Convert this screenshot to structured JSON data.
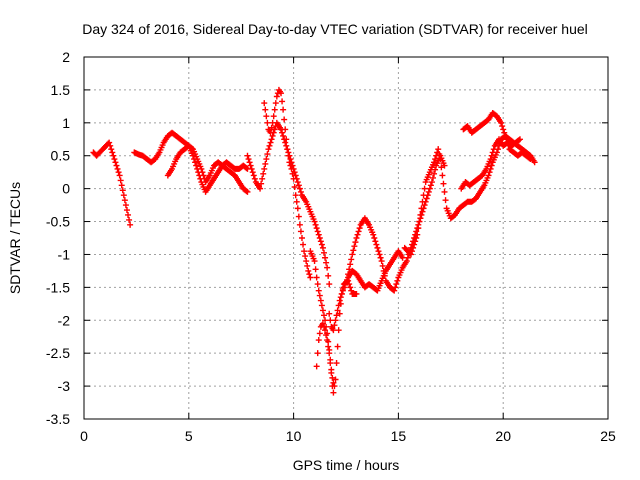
{
  "chart_data": {
    "type": "scatter",
    "title": "Day 324 of 2016, Sidereal Day-to-day VTEC variation (SDTVAR) for receiver huel",
    "xlabel": "GPS time / hours",
    "ylabel": "SDTVAR / TECUs",
    "xlim": [
      0,
      25
    ],
    "ylim": [
      -3.5,
      2
    ],
    "xticks": [
      0,
      5,
      10,
      15,
      20,
      25
    ],
    "xtick_labels": [
      "0",
      "5",
      "10",
      "15",
      "20",
      "25"
    ],
    "yticks": [
      -3.5,
      -3,
      -2.5,
      -2,
      -1.5,
      -1,
      -0.5,
      0,
      0.5,
      1,
      1.5,
      2
    ],
    "ytick_labels": [
      "-3.5",
      "-3",
      "-2.5",
      "-2",
      "-1.5",
      "-1",
      "-0.5",
      "0",
      "0.5",
      "1",
      "1.5",
      "2"
    ],
    "grid": true,
    "marker": "+",
    "color": "#ff0000",
    "series": [
      {
        "name": "SDTVAR",
        "segments": [
          [
            [
              0.45,
              0.55
            ],
            [
              0.6,
              0.5
            ],
            [
              0.75,
              0.55
            ],
            [
              0.9,
              0.6
            ],
            [
              1.05,
              0.65
            ],
            [
              1.2,
              0.7
            ],
            [
              1.3,
              0.6
            ],
            [
              1.4,
              0.5
            ],
            [
              1.5,
              0.4
            ],
            [
              1.6,
              0.3
            ],
            [
              1.7,
              0.2
            ],
            [
              1.8,
              0.05
            ],
            [
              1.9,
              -0.1
            ],
            [
              2.0,
              -0.25
            ],
            [
              2.1,
              -0.4
            ],
            [
              2.2,
              -0.55
            ]
          ],
          [
            [
              2.4,
              0.55
            ],
            [
              2.6,
              0.52
            ],
            [
              2.8,
              0.5
            ],
            [
              3.0,
              0.45
            ],
            [
              3.2,
              0.4
            ],
            [
              3.4,
              0.45
            ],
            [
              3.6,
              0.55
            ],
            [
              3.8,
              0.7
            ],
            [
              4.0,
              0.8
            ],
            [
              4.2,
              0.85
            ],
            [
              4.4,
              0.8
            ],
            [
              4.6,
              0.75
            ],
            [
              4.8,
              0.7
            ],
            [
              5.0,
              0.65
            ],
            [
              5.2,
              0.6
            ],
            [
              5.4,
              0.45
            ],
            [
              5.6,
              0.3
            ],
            [
              5.8,
              0.1
            ],
            [
              6.0,
              0.2
            ],
            [
              6.2,
              0.35
            ],
            [
              6.4,
              0.4
            ],
            [
              6.6,
              0.35
            ],
            [
              6.8,
              0.3
            ],
            [
              7.0,
              0.25
            ],
            [
              7.2,
              0.2
            ],
            [
              7.4,
              0.1
            ],
            [
              7.6,
              0.0
            ],
            [
              7.8,
              -0.05
            ]
          ],
          [
            [
              4.0,
              0.2
            ],
            [
              4.2,
              0.3
            ],
            [
              4.4,
              0.45
            ],
            [
              4.6,
              0.55
            ],
            [
              4.8,
              0.6
            ],
            [
              5.0,
              0.65
            ],
            [
              5.2,
              0.5
            ],
            [
              5.4,
              0.3
            ],
            [
              5.6,
              0.1
            ],
            [
              5.8,
              -0.05
            ],
            [
              6.0,
              0.05
            ],
            [
              6.2,
              0.15
            ],
            [
              6.4,
              0.25
            ],
            [
              6.6,
              0.35
            ],
            [
              6.8,
              0.4
            ],
            [
              7.0,
              0.35
            ],
            [
              7.2,
              0.3
            ],
            [
              7.4,
              0.3
            ],
            [
              7.6,
              0.35
            ],
            [
              7.8,
              0.3
            ]
          ],
          [
            [
              7.8,
              0.5
            ],
            [
              8.0,
              0.3
            ],
            [
              8.2,
              0.1
            ],
            [
              8.4,
              0.0
            ],
            [
              8.6,
              0.3
            ],
            [
              8.8,
              0.6
            ],
            [
              9.0,
              0.8
            ],
            [
              9.2,
              1.0
            ],
            [
              9.4,
              0.9
            ],
            [
              9.6,
              0.7
            ],
            [
              9.8,
              0.5
            ],
            [
              10.0,
              0.3
            ],
            [
              10.2,
              0.1
            ],
            [
              10.4,
              -0.1
            ],
            [
              10.6,
              -0.2
            ],
            [
              10.8,
              -0.35
            ],
            [
              11.0,
              -0.5
            ],
            [
              11.2,
              -0.7
            ],
            [
              11.4,
              -0.9
            ],
            [
              11.6,
              -1.2
            ],
            [
              11.7,
              -1.45
            ]
          ],
          [
            [
              8.6,
              1.3
            ],
            [
              8.7,
              1.1
            ],
            [
              8.8,
              0.9
            ],
            [
              8.9,
              0.85
            ],
            [
              9.0,
              1.0
            ],
            [
              9.1,
              1.2
            ],
            [
              9.2,
              1.4
            ],
            [
              9.3,
              1.5
            ],
            [
              9.4,
              1.45
            ],
            [
              9.5,
              1.2
            ],
            [
              9.6,
              0.9
            ],
            [
              9.7,
              0.6
            ],
            [
              9.8,
              0.4
            ],
            [
              9.9,
              0.3
            ],
            [
              10.0,
              0.15
            ],
            [
              10.1,
              -0.1
            ],
            [
              10.2,
              -0.3
            ],
            [
              10.3,
              -0.55
            ],
            [
              10.4,
              -0.75
            ],
            [
              10.5,
              -0.95
            ],
            [
              10.6,
              -1.1
            ],
            [
              10.7,
              -1.25
            ],
            [
              10.8,
              -1.35
            ]
          ],
          [
            [
              10.8,
              -0.95
            ],
            [
              11.0,
              -1.1
            ],
            [
              11.1,
              -1.35
            ],
            [
              11.2,
              -1.55
            ],
            [
              11.3,
              -1.7
            ],
            [
              11.4,
              -1.85
            ],
            [
              11.5,
              -2.0
            ],
            [
              11.6,
              -2.2
            ],
            [
              11.7,
              -2.45
            ],
            [
              11.8,
              -2.75
            ],
            [
              11.85,
              -3.0
            ],
            [
              11.9,
              -3.1
            ],
            [
              12.0,
              -2.9
            ],
            [
              12.1,
              -2.4
            ],
            [
              12.2,
              -1.9
            ],
            [
              12.3,
              -1.6
            ],
            [
              12.4,
              -1.45
            ],
            [
              12.6,
              -1.4
            ],
            [
              12.8,
              -1.6
            ],
            [
              13.0,
              -1.6
            ]
          ],
          [
            [
              11.1,
              -2.7
            ],
            [
              11.2,
              -2.3
            ],
            [
              11.3,
              -2.1
            ],
            [
              11.4,
              -2.05
            ],
            [
              11.5,
              -2.15
            ],
            [
              11.6,
              -2.3
            ],
            [
              11.7,
              -2.5
            ],
            [
              11.8,
              -2.8
            ],
            [
              11.9,
              -2.95
            ]
          ],
          [
            [
              11.7,
              -1.9
            ],
            [
              11.8,
              -2.1
            ],
            [
              11.9,
              -2.15
            ],
            [
              12.0,
              -2.0
            ],
            [
              12.2,
              -1.7
            ],
            [
              12.4,
              -1.5
            ],
            [
              12.6,
              -1.35
            ],
            [
              12.8,
              -1.25
            ],
            [
              13.0,
              -1.3
            ],
            [
              13.2,
              -1.4
            ],
            [
              13.4,
              -1.5
            ],
            [
              13.6,
              -1.45
            ],
            [
              13.8,
              -1.5
            ],
            [
              14.0,
              -1.55
            ],
            [
              14.2,
              -1.4
            ],
            [
              14.4,
              -1.25
            ],
            [
              14.6,
              -1.15
            ],
            [
              14.8,
              -1.05
            ],
            [
              15.0,
              -0.95
            ],
            [
              15.2,
              -1.05
            ]
          ],
          [
            [
              12.6,
              -1.3
            ],
            [
              12.8,
              -1.0
            ],
            [
              13.0,
              -0.75
            ],
            [
              13.2,
              -0.55
            ],
            [
              13.4,
              -0.45
            ],
            [
              13.6,
              -0.55
            ],
            [
              13.8,
              -0.7
            ],
            [
              14.0,
              -0.9
            ],
            [
              14.2,
              -1.1
            ],
            [
              14.4,
              -1.4
            ],
            [
              14.6,
              -1.5
            ],
            [
              14.8,
              -1.55
            ],
            [
              15.0,
              -1.35
            ],
            [
              15.2,
              -1.2
            ],
            [
              15.4,
              -1.1
            ],
            [
              15.6,
              -0.9
            ],
            [
              15.8,
              -0.7
            ],
            [
              16.0,
              -0.5
            ],
            [
              16.2,
              -0.3
            ],
            [
              16.4,
              -0.1
            ],
            [
              16.6,
              0.1
            ],
            [
              16.8,
              0.35
            ],
            [
              17.0,
              0.5
            ],
            [
              17.2,
              0.35
            ]
          ],
          [
            [
              15.3,
              -0.9
            ],
            [
              15.6,
              -1.0
            ],
            [
              15.9,
              -0.7
            ],
            [
              16.1,
              -0.3
            ],
            [
              16.3,
              0.1
            ],
            [
              16.5,
              0.25
            ],
            [
              16.7,
              0.4
            ],
            [
              16.9,
              0.6
            ],
            [
              17.0,
              0.45
            ],
            [
              17.1,
              0.2
            ],
            [
              17.3,
              -0.3
            ],
            [
              17.5,
              -0.45
            ],
            [
              17.7,
              -0.4
            ],
            [
              17.9,
              -0.3
            ],
            [
              18.1,
              -0.25
            ],
            [
              18.3,
              -0.2
            ],
            [
              18.5,
              -0.2
            ],
            [
              18.7,
              -0.15
            ],
            [
              18.9,
              -0.05
            ],
            [
              19.1,
              0.05
            ],
            [
              19.3,
              0.2
            ],
            [
              19.5,
              0.4
            ],
            [
              19.7,
              0.55
            ],
            [
              19.9,
              0.75
            ],
            [
              20.1,
              0.8
            ],
            [
              20.3,
              0.75
            ],
            [
              20.5,
              0.7
            ],
            [
              20.7,
              0.65
            ],
            [
              20.9,
              0.6
            ],
            [
              21.1,
              0.55
            ],
            [
              21.3,
              0.5
            ],
            [
              21.5,
              0.4
            ]
          ],
          [
            [
              18.1,
              0.9
            ],
            [
              18.3,
              0.95
            ],
            [
              18.5,
              0.85
            ],
            [
              18.7,
              0.9
            ],
            [
              18.9,
              0.95
            ],
            [
              19.1,
              1.0
            ],
            [
              19.3,
              1.05
            ],
            [
              19.5,
              1.15
            ],
            [
              19.7,
              1.1
            ],
            [
              19.9,
              1.0
            ],
            [
              20.1,
              0.8
            ],
            [
              20.3,
              0.6
            ],
            [
              20.5,
              0.55
            ],
            [
              20.7,
              0.5
            ],
            [
              20.9,
              0.55
            ],
            [
              21.1,
              0.5
            ],
            [
              21.3,
              0.45
            ]
          ],
          [
            [
              18.0,
              0.0
            ],
            [
              18.2,
              0.1
            ],
            [
              18.4,
              0.05
            ],
            [
              18.6,
              0.1
            ],
            [
              18.8,
              0.15
            ],
            [
              19.0,
              0.2
            ],
            [
              19.2,
              0.3
            ],
            [
              19.4,
              0.45
            ],
            [
              19.6,
              0.65
            ],
            [
              19.8,
              0.75
            ],
            [
              20.0,
              0.65
            ],
            [
              20.2,
              0.7
            ],
            [
              20.4,
              0.65
            ],
            [
              20.6,
              0.7
            ],
            [
              20.8,
              0.75
            ]
          ]
        ]
      }
    ]
  }
}
